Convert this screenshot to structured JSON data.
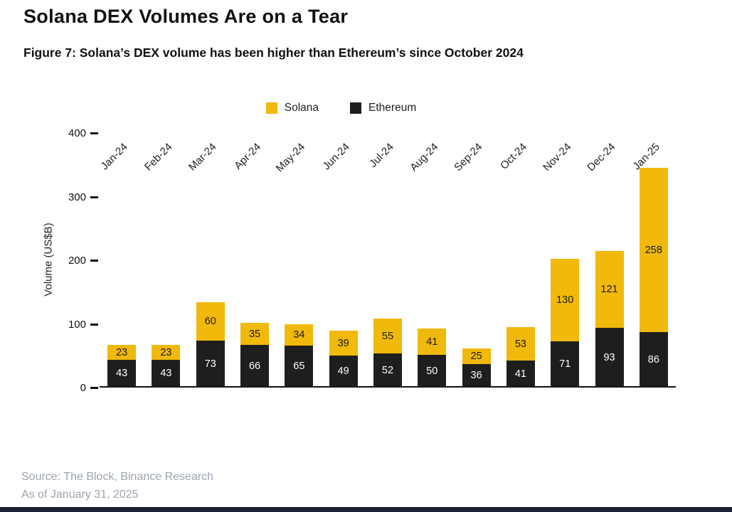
{
  "page": {
    "title": "Solana DEX Volumes Are on a Tear",
    "subtitle": "Figure 7: Solana’s DEX volume has been higher than Ethereum’s since October 2024",
    "source_line1": "Source: The Block, Binance Research",
    "source_line2": "As of January 31, 2025"
  },
  "colors": {
    "solana": "#F0B90B",
    "ethereum": "#1E1E1E",
    "bottom_accent": "#1B2233",
    "source_text": "#9CA3AF"
  },
  "chart_data": {
    "type": "bar",
    "stacked": true,
    "title": "",
    "xlabel": "",
    "ylabel": "Volume (US$B)",
    "ylim": [
      0,
      400
    ],
    "yticks": [
      0,
      100,
      200,
      300,
      400
    ],
    "grid": false,
    "legend_position": "top",
    "legend": [
      "Solana",
      "Ethereum"
    ],
    "categories": [
      "Jan-24",
      "Feb-24",
      "Mar-24",
      "Apr-24",
      "May-24",
      "Jun-24",
      "Jul-24",
      "Aug-24",
      "Sep-24",
      "Oct-24",
      "Nov-24",
      "Dec-24",
      "Jan-25"
    ],
    "series": [
      {
        "name": "Ethereum",
        "color": "#1E1E1E",
        "label_color": "#FFFFFF",
        "values": [
          43,
          43,
          73,
          66,
          65,
          49,
          52,
          50,
          36,
          41,
          71,
          93,
          86
        ]
      },
      {
        "name": "Solana",
        "color": "#F0B90B",
        "label_color": "#1A1A1A",
        "values": [
          23,
          23,
          60,
          35,
          34,
          39,
          55,
          41,
          25,
          53,
          130,
          121,
          258
        ]
      }
    ]
  }
}
